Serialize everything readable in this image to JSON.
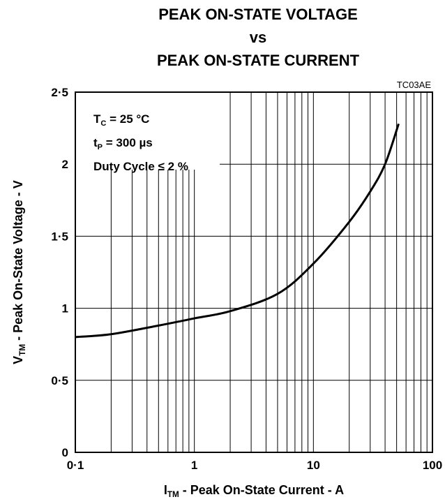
{
  "chart_data": {
    "type": "line",
    "title": [
      "PEAK ON-STATE VOLTAGE",
      "vs",
      "PEAK ON-STATE CURRENT"
    ],
    "code": "TC03AE",
    "x_label": {
      "main": "I",
      "sub": "TM",
      "rest": " - Peak On-State Current - A"
    },
    "y_label": {
      "main": "V",
      "sub": "TM",
      "rest": " - Peak On-State Voltage - V"
    },
    "annotations": [
      {
        "main": "T",
        "sub": "C",
        "rest": " = 25 °C"
      },
      {
        "main": "t",
        "sub": "P",
        "rest": " = 300 µs"
      },
      {
        "main": "Duty Cycle ≤ 2 %",
        "sub": "",
        "rest": ""
      }
    ],
    "x_log": true,
    "grid": true,
    "xlim": [
      0.1,
      100
    ],
    "xticks": [
      {
        "value": 0.1,
        "label": "0·1"
      },
      1,
      10,
      100
    ],
    "ylim": [
      0,
      2.5
    ],
    "yticks": [
      0,
      {
        "value": 0.5,
        "label": "0·5"
      },
      1,
      {
        "value": 1.5,
        "label": "1·5"
      },
      2,
      {
        "value": 2.5,
        "label": "2·5"
      }
    ],
    "series": [
      {
        "name": "VTM",
        "color": "#000000",
        "x": [
          0.1,
          0.2,
          0.5,
          1,
          2,
          5,
          10,
          20,
          30,
          40,
          52
        ],
        "values": [
          0.8,
          0.82,
          0.88,
          0.93,
          0.98,
          1.1,
          1.31,
          1.6,
          1.81,
          2.0,
          2.28
        ]
      }
    ]
  }
}
